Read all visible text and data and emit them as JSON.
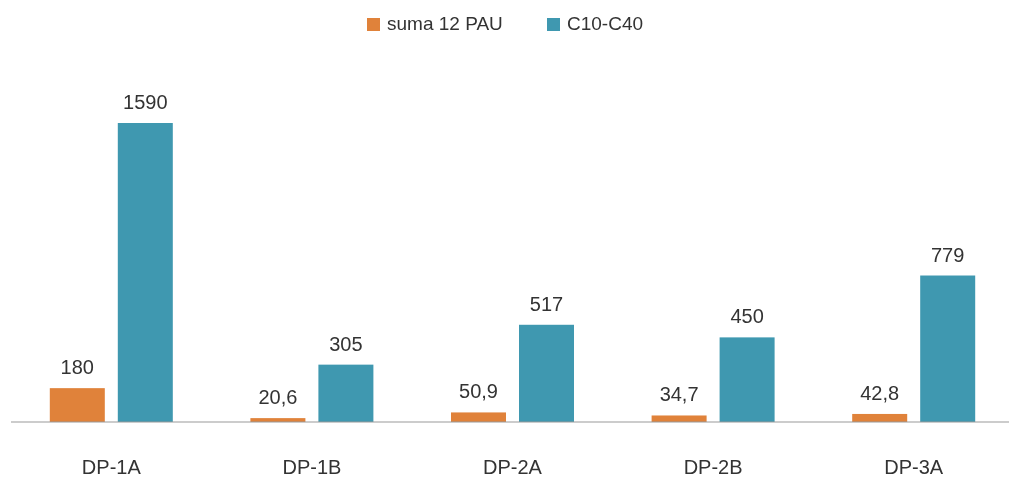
{
  "chart_data": {
    "type": "bar",
    "categories": [
      "DP-1A",
      "DP-1B",
      "DP-2A",
      "DP-2B",
      "DP-3A"
    ],
    "legend": "top",
    "series": [
      {
        "name": "suma 12 PAU",
        "color": "#e0823a",
        "values": [
          180,
          20.6,
          50.9,
          34.7,
          42.8
        ],
        "value_labels": [
          "180",
          "20,6",
          "50,9",
          "34,7",
          "42,8"
        ]
      },
      {
        "name": "C10-C40",
        "color": "#3f98b0",
        "values": [
          1590,
          305,
          517,
          450,
          779
        ],
        "value_labels": [
          "1590",
          "305",
          "517",
          "450",
          "779"
        ]
      }
    ]
  }
}
